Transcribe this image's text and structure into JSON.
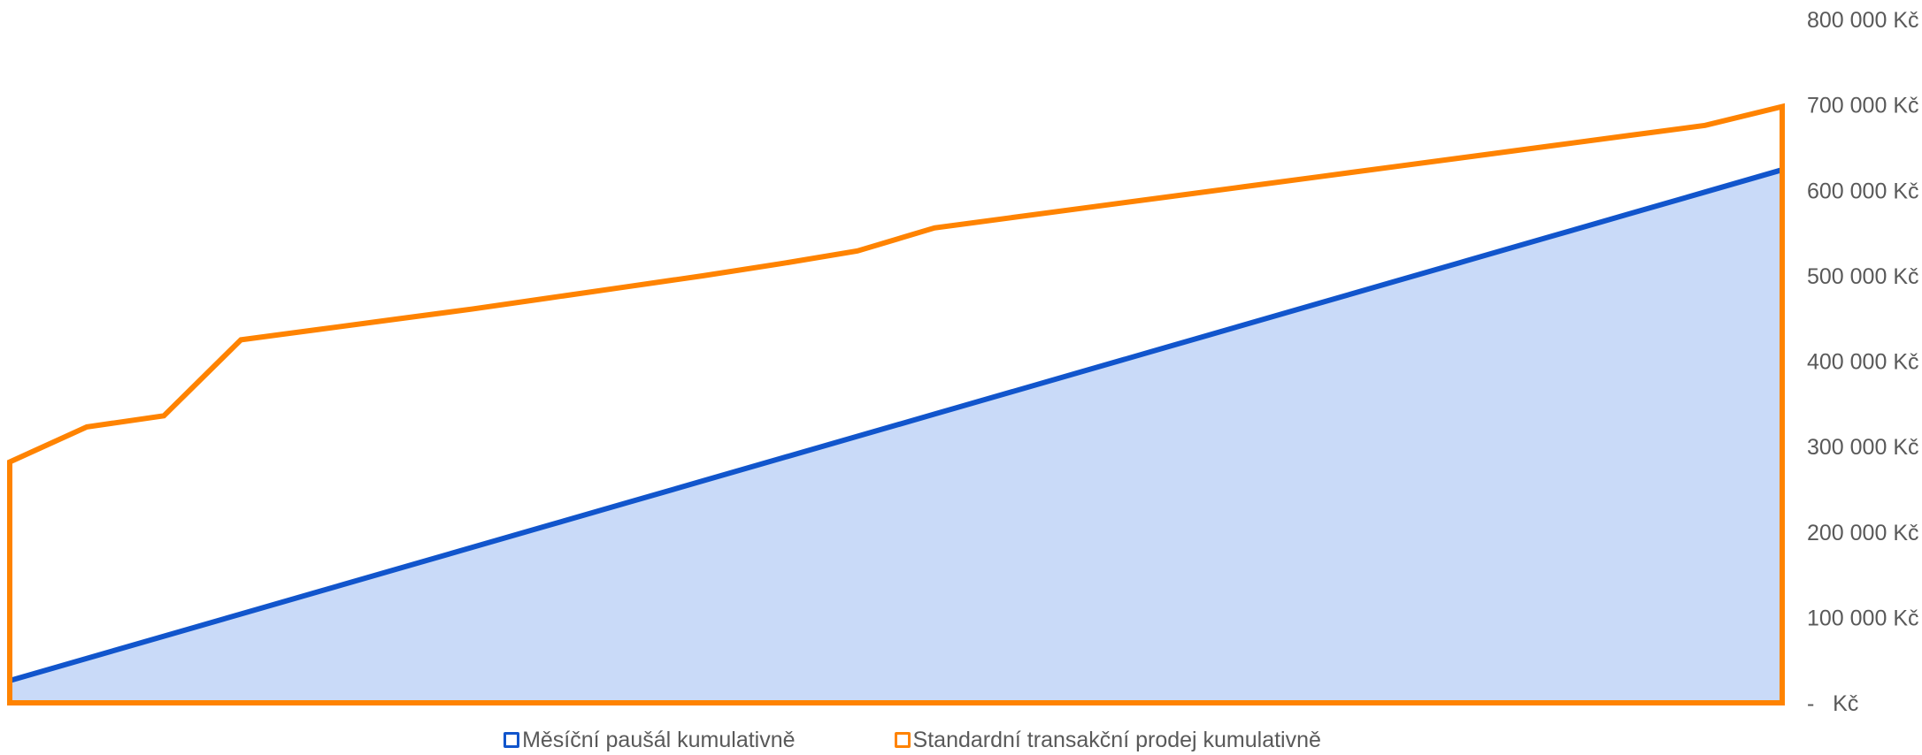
{
  "chart_data": {
    "type": "area",
    "title": "",
    "xlabel": "",
    "ylabel": "",
    "ylim": [
      0,
      800000
    ],
    "yticks": [
      {
        "value": 0,
        "label": "-   Kč"
      },
      {
        "value": 100000,
        "label": "100 000 Kč"
      },
      {
        "value": 200000,
        "label": "200 000 Kč"
      },
      {
        "value": 300000,
        "label": "300 000 Kč"
      },
      {
        "value": 400000,
        "label": "400 000 Kč"
      },
      {
        "value": 500000,
        "label": "500 000 Kč"
      },
      {
        "value": 600000,
        "label": "600 000 Kč"
      },
      {
        "value": 700000,
        "label": "700 000 Kč"
      },
      {
        "value": 800000,
        "label": "800 000 Kč"
      }
    ],
    "x": [
      1,
      2,
      3,
      4,
      5,
      6,
      7,
      8,
      9,
      10,
      11,
      12,
      13,
      14,
      15,
      16,
      17,
      18,
      19,
      20,
      21,
      22,
      23,
      24
    ],
    "grid": false,
    "legend_position": "bottom",
    "series": [
      {
        "name": "Měsíční paušál kumulativně",
        "style": "area",
        "color": "#1155CC",
        "fill": "#C9DAF8",
        "values": [
          26000,
          52000,
          78000,
          104000,
          130000,
          156000,
          182000,
          208000,
          234000,
          260000,
          286000,
          312000,
          338000,
          364000,
          390000,
          416000,
          442000,
          468000,
          494000,
          520000,
          546000,
          572000,
          598000,
          624000
        ]
      },
      {
        "name": "Standardní transakční prodej kumulativně",
        "style": "line",
        "color": "#FF8300",
        "values": [
          282000,
          323000,
          336000,
          425000,
          437000,
          449000,
          461000,
          474000,
          487000,
          500000,
          514000,
          529000,
          556000,
          568000,
          580000,
          592000,
          604000,
          616000,
          628000,
          640000,
          652000,
          664000,
          676000,
          698000
        ]
      }
    ]
  }
}
